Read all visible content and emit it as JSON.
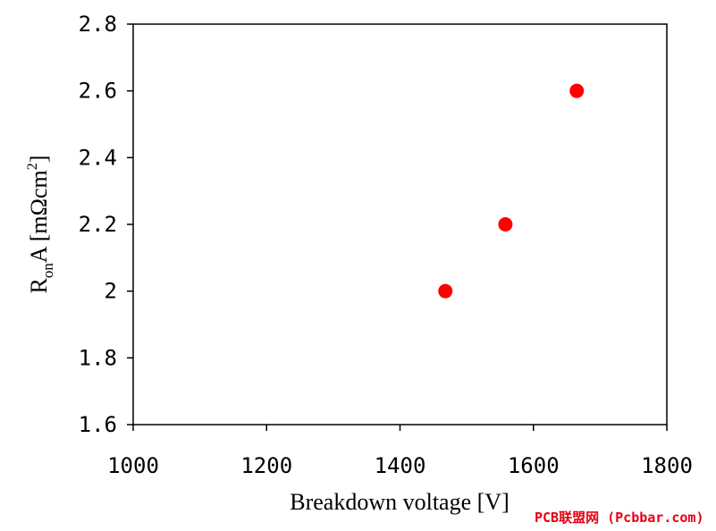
{
  "chart_data": {
    "type": "scatter",
    "title": "",
    "xlabel": "Breakdown voltage [V]",
    "ylabel": {
      "main": "R",
      "sub": "on",
      "rest": "A [mΩcm",
      "sup": "2",
      "end": "]"
    },
    "xlim": [
      1000,
      1800
    ],
    "ylim": [
      1.6,
      2.8
    ],
    "xticks": [
      "1000",
      "1200",
      "1400",
      "1600",
      "1800"
    ],
    "yticks": [
      "1.6",
      "1.8",
      "2",
      "2.2",
      "2.4",
      "2.6",
      "2.8"
    ],
    "grid": false,
    "series": [
      {
        "color": "#ff0000",
        "points": [
          {
            "x": 1468,
            "y": 2.0
          },
          {
            "x": 1558,
            "y": 2.2
          },
          {
            "x": 1665,
            "y": 2.6
          }
        ]
      }
    ]
  },
  "watermark": "PCB联盟网 (Pcbbar.com)"
}
